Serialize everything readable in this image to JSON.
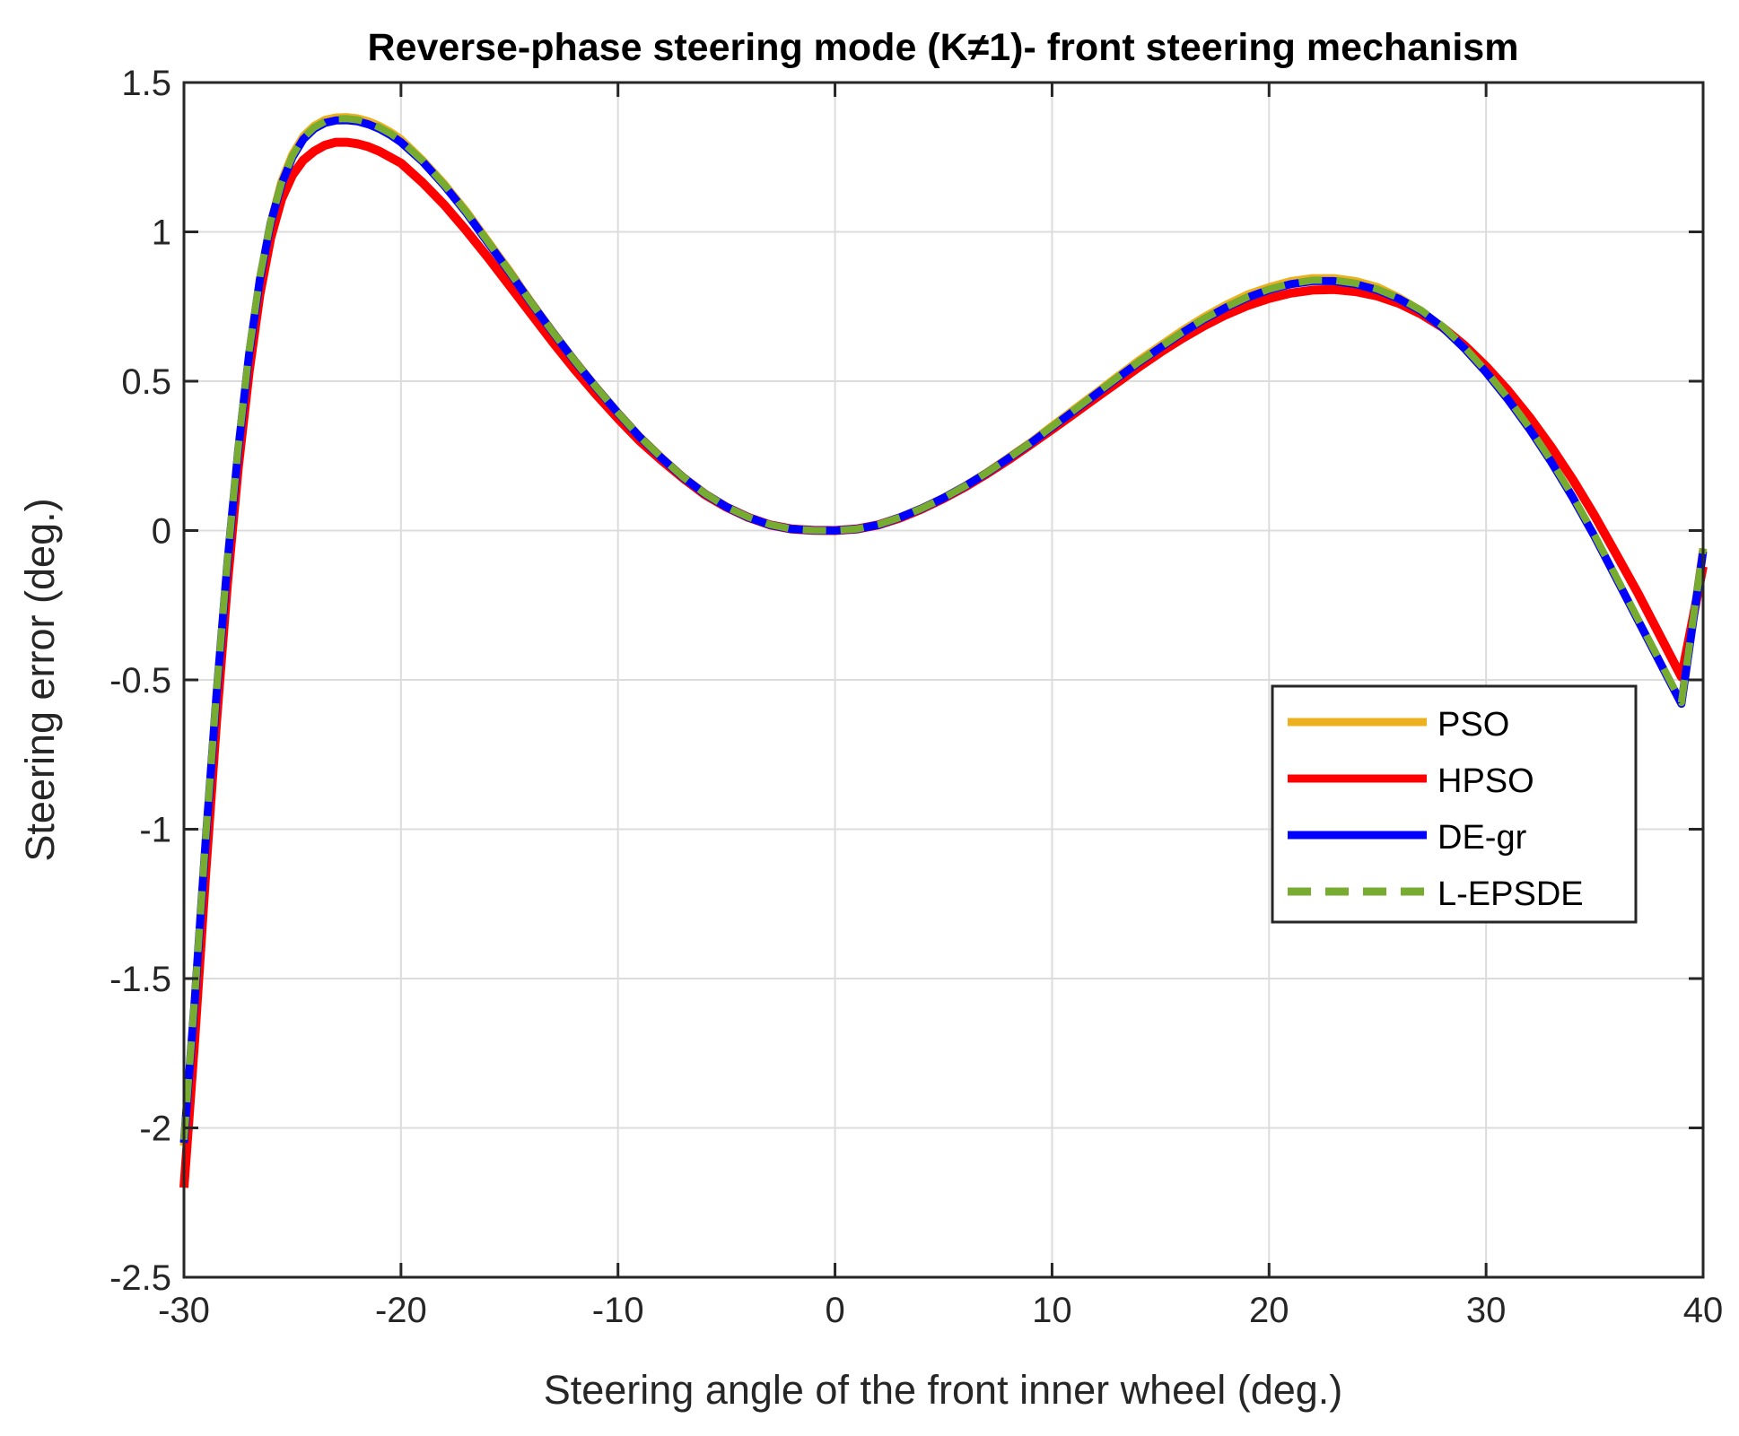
{
  "chart_data": {
    "type": "line",
    "title": "Reverse-phase steering mode (K≠1)- front steering mechanism",
    "xlabel": "Steering angle of the front inner wheel (deg.)",
    "ylabel": "Steering error (deg.)",
    "xlim": [
      -30,
      40
    ],
    "ylim": [
      -2.5,
      1.5
    ],
    "xticks": [
      -30,
      -20,
      -10,
      0,
      10,
      20,
      30,
      40
    ],
    "yticks": [
      -2.5,
      -2,
      -1.5,
      -1,
      -0.5,
      0,
      0.5,
      1,
      1.5
    ],
    "xtick_labels": [
      "-30",
      "-20",
      "-10",
      "0",
      "10",
      "20",
      "30",
      "40"
    ],
    "ytick_labels": [
      "-2.5",
      "-2",
      "-1.5",
      "-1",
      "-0.5",
      "0",
      "0.5",
      "1",
      "1.5"
    ],
    "grid": true,
    "legend_position": "center-right",
    "x": [
      -30,
      -29.5,
      -29,
      -28.5,
      -28,
      -27.5,
      -27,
      -26.5,
      -26,
      -25.5,
      -25,
      -24.5,
      -24,
      -23.5,
      -23,
      -22.5,
      -22,
      -21.5,
      -21,
      -20.5,
      -20,
      -19,
      -18,
      -17,
      -16,
      -15,
      -14,
      -13,
      -12,
      -11,
      -10,
      -9,
      -8,
      -7,
      -6,
      -5,
      -4,
      -3,
      -2,
      -1,
      0,
      1,
      2,
      3,
      4,
      5,
      6,
      7,
      8,
      9,
      10,
      11,
      12,
      13,
      14,
      15,
      16,
      17,
      18,
      19,
      20,
      21,
      22,
      23,
      24,
      25,
      26,
      27,
      28,
      29,
      30,
      31,
      32,
      33,
      34,
      35,
      36,
      37,
      38,
      39,
      40
    ],
    "series": [
      {
        "name": "PSO",
        "color": "#EDB120",
        "style": "solid",
        "values": [
          -2.06,
          -1.58,
          -1.05,
          -0.56,
          -0.12,
          0.26,
          0.58,
          0.84,
          1.03,
          1.17,
          1.26,
          1.32,
          1.355,
          1.375,
          1.383,
          1.384,
          1.38,
          1.37,
          1.355,
          1.335,
          1.31,
          1.24,
          1.16,
          1.07,
          0.97,
          0.87,
          0.765,
          0.665,
          0.57,
          0.48,
          0.395,
          0.315,
          0.245,
          0.18,
          0.125,
          0.08,
          0.045,
          0.02,
          0.005,
          0.0005,
          0.0,
          0.005,
          0.02,
          0.045,
          0.075,
          0.11,
          0.15,
          0.195,
          0.245,
          0.295,
          0.35,
          0.405,
          0.46,
          0.515,
          0.57,
          0.62,
          0.67,
          0.715,
          0.755,
          0.79,
          0.815,
          0.835,
          0.845,
          0.845,
          0.835,
          0.815,
          0.78,
          0.735,
          0.68,
          0.61,
          0.53,
          0.44,
          0.34,
          0.23,
          0.11,
          -0.02,
          -0.16,
          -0.3,
          -0.44,
          -0.58,
          -0.06
        ]
      },
      {
        "name": "HPSO",
        "color": "#FF0000",
        "style": "solid",
        "values": [
          -2.2,
          -1.7,
          -1.15,
          -0.64,
          -0.18,
          0.21,
          0.53,
          0.79,
          0.98,
          1.11,
          1.19,
          1.24,
          1.27,
          1.29,
          1.3,
          1.3,
          1.295,
          1.285,
          1.27,
          1.25,
          1.23,
          1.165,
          1.09,
          1.005,
          0.915,
          0.82,
          0.725,
          0.63,
          0.54,
          0.455,
          0.375,
          0.3,
          0.235,
          0.175,
          0.12,
          0.078,
          0.044,
          0.019,
          0.005,
          0.0005,
          0.0,
          0.005,
          0.019,
          0.042,
          0.072,
          0.107,
          0.146,
          0.19,
          0.237,
          0.287,
          0.338,
          0.39,
          0.443,
          0.495,
          0.547,
          0.597,
          0.643,
          0.685,
          0.722,
          0.753,
          0.777,
          0.795,
          0.805,
          0.807,
          0.8,
          0.785,
          0.76,
          0.725,
          0.68,
          0.62,
          0.55,
          0.47,
          0.38,
          0.28,
          0.17,
          0.05,
          -0.08,
          -0.21,
          -0.35,
          -0.49,
          -0.12
        ]
      },
      {
        "name": "DE-gr",
        "color": "#0000FF",
        "style": "solid",
        "values": [
          -2.05,
          -1.57,
          -1.04,
          -0.55,
          -0.11,
          0.27,
          0.59,
          0.84,
          1.03,
          1.16,
          1.25,
          1.31,
          1.345,
          1.365,
          1.373,
          1.374,
          1.37,
          1.36,
          1.345,
          1.325,
          1.3,
          1.235,
          1.155,
          1.065,
          0.965,
          0.865,
          0.762,
          0.663,
          0.568,
          0.478,
          0.393,
          0.313,
          0.243,
          0.178,
          0.123,
          0.079,
          0.044,
          0.019,
          0.005,
          0.0005,
          0.0,
          0.005,
          0.019,
          0.044,
          0.074,
          0.109,
          0.149,
          0.193,
          0.242,
          0.292,
          0.346,
          0.4,
          0.455,
          0.51,
          0.563,
          0.613,
          0.662,
          0.707,
          0.746,
          0.78,
          0.806,
          0.825,
          0.835,
          0.835,
          0.825,
          0.805,
          0.775,
          0.735,
          0.68,
          0.61,
          0.53,
          0.44,
          0.34,
          0.23,
          0.11,
          -0.02,
          -0.16,
          -0.3,
          -0.44,
          -0.58,
          -0.07
        ]
      },
      {
        "name": "L-EPSDE",
        "color": "#77AC30",
        "style": "dashed",
        "values": [
          -2.04,
          -1.56,
          -1.03,
          -0.54,
          -0.1,
          0.28,
          0.6,
          0.85,
          1.035,
          1.165,
          1.255,
          1.315,
          1.35,
          1.37,
          1.378,
          1.379,
          1.375,
          1.365,
          1.35,
          1.33,
          1.305,
          1.238,
          1.158,
          1.068,
          0.968,
          0.867,
          0.763,
          0.664,
          0.569,
          0.479,
          0.394,
          0.314,
          0.244,
          0.179,
          0.124,
          0.079,
          0.045,
          0.02,
          0.005,
          0.0005,
          0.0,
          0.005,
          0.02,
          0.044,
          0.074,
          0.109,
          0.149,
          0.194,
          0.243,
          0.293,
          0.348,
          0.402,
          0.457,
          0.512,
          0.565,
          0.615,
          0.664,
          0.709,
          0.748,
          0.782,
          0.808,
          0.827,
          0.838,
          0.838,
          0.828,
          0.808,
          0.778,
          0.738,
          0.684,
          0.614,
          0.534,
          0.444,
          0.344,
          0.234,
          0.114,
          -0.016,
          -0.156,
          -0.296,
          -0.436,
          -0.576,
          -0.06
        ]
      }
    ]
  }
}
